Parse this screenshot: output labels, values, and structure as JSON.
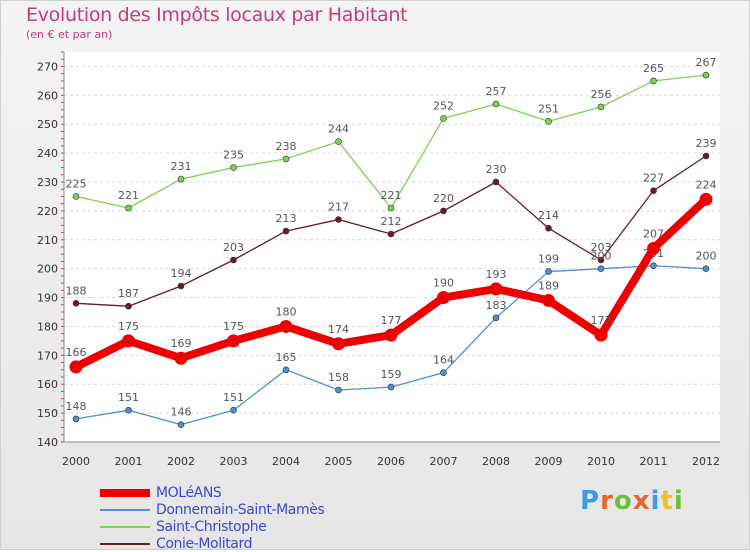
{
  "title": "Evolution des Impôts locaux par Habitant",
  "subtitle": "(en € et par an)",
  "logo": {
    "text": "Proxiti",
    "colors": [
      "#3b9be8",
      "#e8652c",
      "#6fbe3b",
      "#e8652c",
      "#3b9be8",
      "#e8c42c",
      "#6fbe3b"
    ]
  },
  "chart_data": {
    "type": "line",
    "title": "Evolution des Impôts locaux par Habitant",
    "subtitle": "(en € et par an)",
    "xlabel": "",
    "ylabel": "",
    "x": [
      "2000",
      "2001",
      "2002",
      "2003",
      "2004",
      "2005",
      "2006",
      "2007",
      "2008",
      "2009",
      "2010",
      "2011",
      "2012"
    ],
    "yticks": [
      "140",
      "150",
      "160",
      "170",
      "180",
      "190",
      "200",
      "210",
      "220",
      "230",
      "240",
      "250",
      "260",
      "270"
    ],
    "ylim": [
      140,
      275
    ],
    "grid": "horizontal dashed",
    "legend_position": "bottom-left",
    "series": [
      {
        "name": "Saint-Christophe",
        "color": "#7ed351",
        "labels_above": true,
        "values": [
          225,
          221,
          231,
          235,
          238,
          244,
          221,
          252,
          257,
          251,
          256,
          265,
          267
        ],
        "point_labels": [
          "225",
          "221",
          "231",
          "235",
          "238",
          "244",
          "221",
          "252",
          "257",
          "251",
          "256",
          "265",
          "267"
        ]
      },
      {
        "name": "Conie-Molitard",
        "color": "#6b1c23",
        "labels_above": true,
        "values": [
          188,
          187,
          194,
          203,
          213,
          217,
          212,
          220,
          230,
          214,
          203,
          227,
          239
        ],
        "point_labels": [
          "188",
          "187",
          "194",
          "203",
          "213",
          "217",
          "212",
          "220",
          "230",
          "214",
          "203",
          "227",
          "239"
        ]
      },
      {
        "name": "Donnemain-Saint-Mamès",
        "color": "#4a91d4",
        "labels_above": true,
        "values": [
          148,
          151,
          146,
          151,
          165,
          158,
          159,
          164,
          183,
          199,
          200,
          201,
          200
        ],
        "point_labels": [
          "148",
          "151",
          "146",
          "151",
          "165",
          "158",
          "159",
          "164",
          "183",
          "199",
          "200",
          "201",
          "200"
        ]
      },
      {
        "name": "MOLéANS",
        "color": "#ee0000",
        "labels_above": true,
        "values": [
          166,
          175,
          169,
          175,
          180,
          174,
          177,
          190,
          193,
          189,
          177,
          207,
          224
        ],
        "point_labels": [
          "166",
          "175",
          "169",
          "175",
          "180",
          "174",
          "177",
          "190",
          "193",
          "189",
          "177",
          "207",
          "224"
        ]
      }
    ],
    "legend_order": [
      "MOLéANS",
      "Donnemain-Saint-Mamès",
      "Saint-Christophe",
      "Conie-Molitard"
    ]
  }
}
